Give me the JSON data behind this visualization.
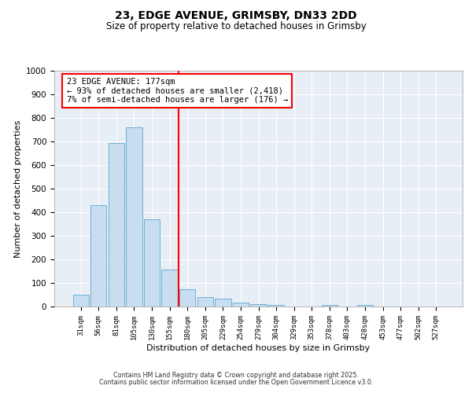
{
  "title": "23, EDGE AVENUE, GRIMSBY, DN33 2DD",
  "subtitle": "Size of property relative to detached houses in Grimsby",
  "xlabel": "Distribution of detached houses by size in Grimsby",
  "ylabel": "Number of detached properties",
  "bar_labels": [
    "31sqm",
    "56sqm",
    "81sqm",
    "105sqm",
    "130sqm",
    "155sqm",
    "180sqm",
    "205sqm",
    "229sqm",
    "254sqm",
    "279sqm",
    "304sqm",
    "329sqm",
    "353sqm",
    "378sqm",
    "403sqm",
    "428sqm",
    "453sqm",
    "477sqm",
    "502sqm",
    "527sqm"
  ],
  "bar_values": [
    50,
    430,
    695,
    760,
    370,
    158,
    75,
    40,
    33,
    18,
    10,
    7,
    0,
    0,
    8,
    0,
    8,
    0,
    0,
    0,
    0
  ],
  "bar_color": "#c8ddf0",
  "bar_edge_color": "#6aaed6",
  "vline_color": "red",
  "annotation_text": "23 EDGE AVENUE: 177sqm\n← 93% of detached houses are smaller (2,418)\n7% of semi-detached houses are larger (176) →",
  "ylim": [
    0,
    1000
  ],
  "yticks": [
    0,
    100,
    200,
    300,
    400,
    500,
    600,
    700,
    800,
    900,
    1000
  ],
  "background_color": "#e8eef5",
  "grid_color": "#ffffff",
  "footer_line1": "Contains HM Land Registry data © Crown copyright and database right 2025.",
  "footer_line2": "Contains public sector information licensed under the Open Government Licence v3.0."
}
